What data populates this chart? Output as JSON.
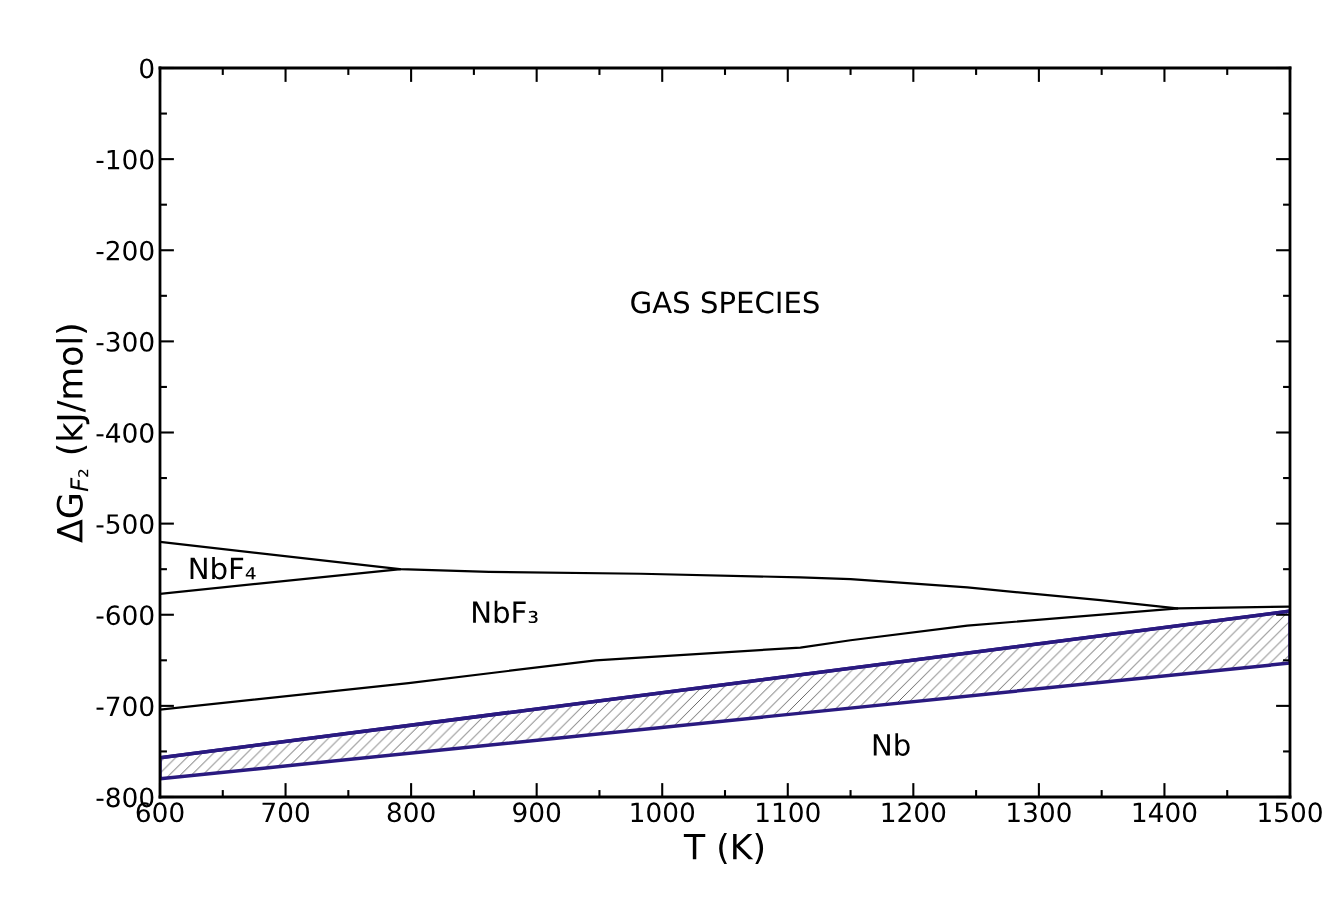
{
  "chart_data": {
    "type": "line",
    "xlabel": "T (K)",
    "ylabel": "ΔG$_{F₂}$ (kJ/mol)",
    "xlim": [
      600,
      1500
    ],
    "xticks": [
      600,
      700,
      800,
      900,
      1000,
      1100,
      1200,
      1300,
      1400,
      1500
    ],
    "ylim": [
      -800,
      0
    ],
    "yticks": [
      -800,
      -700,
      -600,
      -500,
      -400,
      -300,
      -200,
      -100,
      0
    ],
    "grid": false,
    "legend": false,
    "marker": "none",
    "line_style": "solid",
    "series": [
      {
        "color": "#000000",
        "x": [
          600,
          791,
          862,
          983,
          1110,
          1150,
          1243,
          1349,
          1410,
          1500
        ],
        "values": [
          -520,
          -550,
          -553,
          -555,
          -559,
          -561,
          -570,
          -584,
          -593,
          -591
        ]
      },
      {
        "color": "#000000",
        "x": [
          600,
          791
        ],
        "values": [
          -577,
          -550
        ]
      },
      {
        "color": "#000000",
        "x": [
          600,
          798,
          947,
          1110,
          1150,
          1243,
          1410
        ],
        "values": [
          -704,
          -675,
          -650,
          -636,
          -628,
          -612,
          -593
        ]
      },
      {
        "color": "#2a1a80",
        "x": [
          600,
          1500
        ],
        "values": [
          -757,
          -596
        ],
        "lower": [
          -780,
          -653
        ],
        "upper": [
          -757,
          -596
        ]
      }
    ],
    "annotations": [
      "GAS SPECIES",
      "NbF₄",
      "NbF₃",
      "Nb"
    ]
  }
}
